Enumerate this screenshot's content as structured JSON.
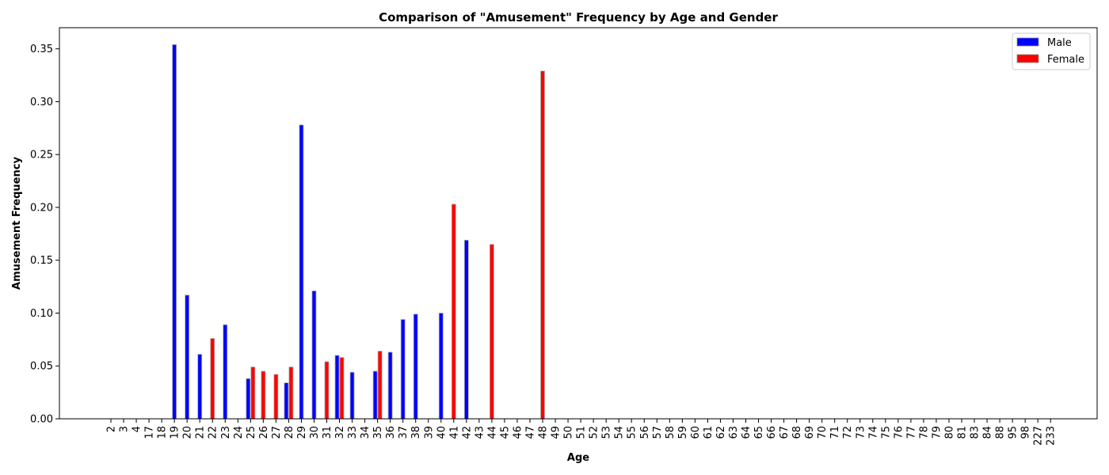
{
  "chart_data": {
    "type": "bar",
    "title": "Comparison of \"Amusement\" Frequency by Age and Gender",
    "xlabel": "Age",
    "ylabel": "Amusement Frequency",
    "ylim": [
      0,
      0.37
    ],
    "yticks": [
      "0.00",
      "0.05",
      "0.10",
      "0.15",
      "0.20",
      "0.25",
      "0.30",
      "0.35"
    ],
    "legend_position": "top-right",
    "categories": [
      "2",
      "3",
      "4",
      "17",
      "18",
      "19",
      "20",
      "21",
      "22",
      "23",
      "24",
      "25",
      "26",
      "27",
      "28",
      "29",
      "30",
      "31",
      "32",
      "33",
      "34",
      "35",
      "36",
      "37",
      "38",
      "39",
      "40",
      "41",
      "42",
      "43",
      "44",
      "45",
      "46",
      "47",
      "48",
      "49",
      "50",
      "51",
      "52",
      "53",
      "54",
      "55",
      "56",
      "57",
      "58",
      "59",
      "60",
      "61",
      "62",
      "63",
      "64",
      "65",
      "66",
      "67",
      "68",
      "69",
      "70",
      "71",
      "72",
      "73",
      "74",
      "75",
      "76",
      "77",
      "78",
      "79",
      "80",
      "81",
      "83",
      "84",
      "88",
      "95",
      "98",
      "227",
      "233"
    ],
    "series": [
      {
        "name": "Male",
        "color": "#0000ff",
        "values": [
          0,
          0,
          0,
          0,
          0,
          0.354,
          0.117,
          0.061,
          0,
          0.089,
          0,
          0.038,
          0,
          0,
          0.034,
          0.278,
          0.121,
          0,
          0.06,
          0.044,
          0,
          0.045,
          0.063,
          0.094,
          0.099,
          0,
          0.1,
          0,
          0.169,
          0,
          0,
          0,
          0,
          0,
          0,
          0,
          0,
          0,
          0,
          0,
          0,
          0,
          0,
          0,
          0,
          0,
          0,
          0,
          0,
          0,
          0,
          0,
          0,
          0,
          0,
          0,
          0,
          0,
          0,
          0,
          0,
          0,
          0,
          0,
          0,
          0,
          0,
          0,
          0,
          0,
          0,
          0,
          0,
          0,
          0
        ]
      },
      {
        "name": "Female",
        "color": "#ff0000",
        "values": [
          0,
          0,
          0,
          0,
          0,
          0,
          0,
          0,
          0.076,
          0,
          0,
          0.049,
          0.045,
          0.042,
          0.049,
          0,
          0,
          0.054,
          0.058,
          0,
          0,
          0.064,
          0,
          0,
          0,
          0,
          0,
          0.203,
          0,
          0,
          0.165,
          0,
          0,
          0,
          0.329,
          0,
          0,
          0,
          0,
          0,
          0,
          0,
          0,
          0,
          0,
          0,
          0,
          0,
          0,
          0,
          0,
          0,
          0,
          0,
          0,
          0,
          0,
          0,
          0,
          0,
          0,
          0,
          0,
          0,
          0,
          0,
          0,
          0,
          0,
          0,
          0,
          0,
          0,
          0,
          0
        ]
      }
    ]
  }
}
